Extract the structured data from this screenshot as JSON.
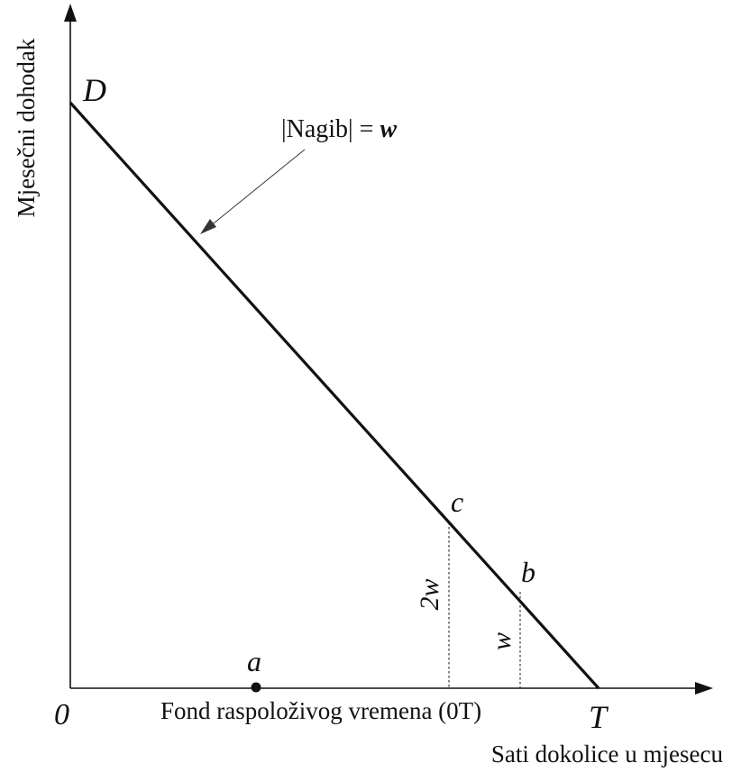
{
  "labels": {
    "y_axis": "Mjesečni dohodak",
    "x_axis": "Sati dokolice u mjesecu",
    "x_axis_span": "Fond raspoloživog vremena (0T)",
    "origin": "0",
    "point_d": "D",
    "point_t": "T",
    "point_a": "a",
    "point_b": "b",
    "point_c": "c",
    "slope_prefix": "|Nagib| = ",
    "slope_symbol": "w",
    "height_c": "2w",
    "height_b": "w"
  }
}
